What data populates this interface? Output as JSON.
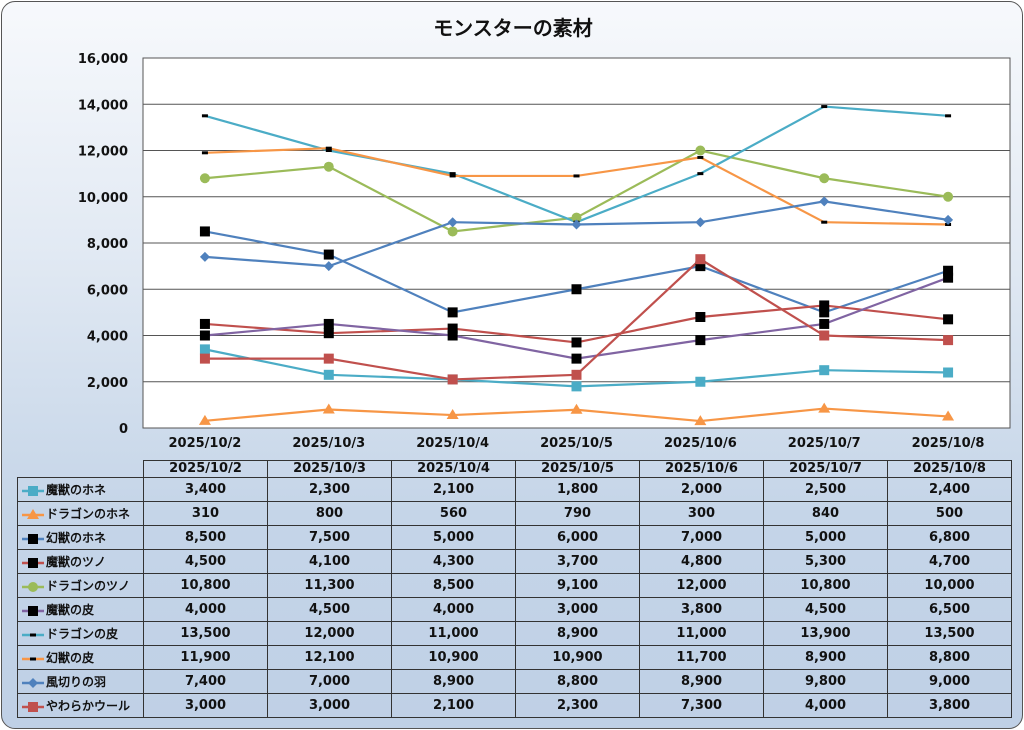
{
  "chart_data": {
    "type": "line",
    "title": "モンスターの素材",
    "categories": [
      "2025/10/2",
      "2025/10/3",
      "2025/10/4",
      "2025/10/5",
      "2025/10/6",
      "2025/10/7",
      "2025/10/8"
    ],
    "ylim": [
      0,
      16000
    ],
    "yticks": [
      "0",
      "2,000",
      "4,000",
      "6,000",
      "8,000",
      "10,000",
      "12,000",
      "14,000",
      "16,000"
    ],
    "ytick_values": [
      0,
      2000,
      4000,
      6000,
      8000,
      10000,
      12000,
      14000,
      16000
    ],
    "grid": true,
    "legend": "data-table-bottom",
    "series": [
      {
        "name": "魔獣のホネ",
        "color": "#4bacc6",
        "marker": "square",
        "marker_color": "#4bacc6",
        "values": [
          3400,
          2300,
          2100,
          1800,
          2000,
          2500,
          2400
        ],
        "labels": [
          "3,400",
          "2,300",
          "2,100",
          "1,800",
          "2,000",
          "2,500",
          "2,400"
        ]
      },
      {
        "name": "ドラゴンのホネ",
        "color": "#f79646",
        "marker": "triangle",
        "marker_color": "#f79646",
        "values": [
          310,
          800,
          560,
          790,
          300,
          840,
          500
        ],
        "labels": [
          "310",
          "800",
          "560",
          "790",
          "300",
          "840",
          "500"
        ]
      },
      {
        "name": "幻獣のホネ",
        "color": "#4f81bd",
        "marker": "square",
        "marker_color": "#000000",
        "values": [
          8500,
          7500,
          5000,
          6000,
          7000,
          5000,
          6800
        ],
        "labels": [
          "8,500",
          "7,500",
          "5,000",
          "6,000",
          "7,000",
          "5,000",
          "6,800"
        ]
      },
      {
        "name": "魔獣のツノ",
        "color": "#c0504d",
        "marker": "square",
        "marker_color": "#000000",
        "values": [
          4500,
          4100,
          4300,
          3700,
          4800,
          5300,
          4700
        ],
        "labels": [
          "4,500",
          "4,100",
          "4,300",
          "3,700",
          "4,800",
          "5,300",
          "4,700"
        ]
      },
      {
        "name": "ドラゴンのツノ",
        "color": "#9bbb59",
        "marker": "circle",
        "marker_color": "#9bbb59",
        "values": [
          10800,
          11300,
          8500,
          9100,
          12000,
          10800,
          10000
        ],
        "labels": [
          "10,800",
          "11,300",
          "8,500",
          "9,100",
          "12,000",
          "10,800",
          "10,000"
        ]
      },
      {
        "name": "魔獣の皮",
        "color": "#8064a2",
        "marker": "square",
        "marker_color": "#000000",
        "values": [
          4000,
          4500,
          4000,
          3000,
          3800,
          4500,
          6500
        ],
        "labels": [
          "4,000",
          "4,500",
          "4,000",
          "3,000",
          "3,800",
          "4,500",
          "6,500"
        ]
      },
      {
        "name": "ドラゴンの皮",
        "color": "#4bacc6",
        "marker": "dash",
        "marker_color": "#000000",
        "values": [
          13500,
          12000,
          11000,
          8900,
          11000,
          13900,
          13500
        ],
        "labels": [
          "13,500",
          "12,000",
          "11,000",
          "8,900",
          "11,000",
          "13,900",
          "13,500"
        ]
      },
      {
        "name": "幻獣の皮",
        "color": "#f79646",
        "marker": "dash",
        "marker_color": "#000000",
        "values": [
          11900,
          12100,
          10900,
          10900,
          11700,
          8900,
          8800
        ],
        "labels": [
          "11,900",
          "12,100",
          "10,900",
          "10,900",
          "11,700",
          "8,900",
          "8,800"
        ]
      },
      {
        "name": "風切りの羽",
        "color": "#4f81bd",
        "marker": "diamond",
        "marker_color": "#4f81bd",
        "values": [
          7400,
          7000,
          8900,
          8800,
          8900,
          9800,
          9000
        ],
        "labels": [
          "7,400",
          "7,000",
          "8,900",
          "8,800",
          "8,900",
          "9,800",
          "9,000"
        ]
      },
      {
        "name": "やわらかウール",
        "color": "#c0504d",
        "marker": "square",
        "marker_color": "#c0504d",
        "values": [
          3000,
          3000,
          2100,
          2300,
          7300,
          4000,
          3800
        ],
        "labels": [
          "3,000",
          "3,000",
          "2,100",
          "2,300",
          "7,300",
          "4,000",
          "3,800"
        ]
      }
    ]
  }
}
